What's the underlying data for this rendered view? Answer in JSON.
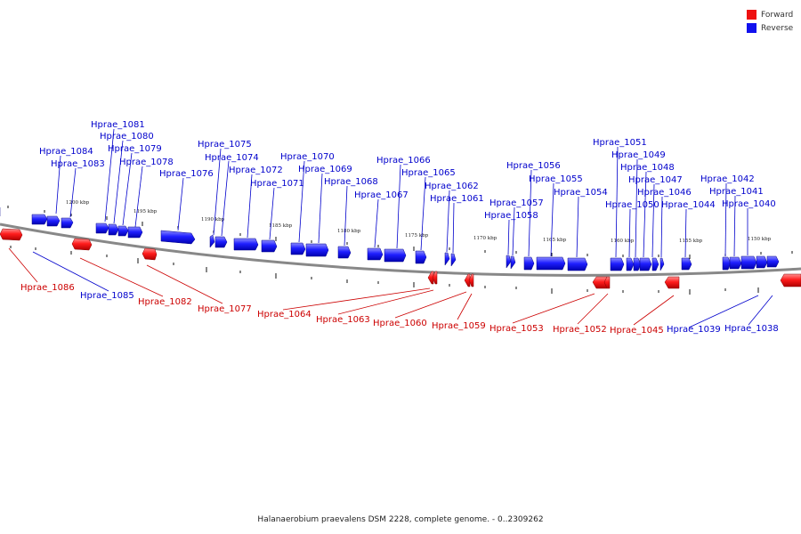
{
  "legend": {
    "forward_label": "Forward",
    "reverse_label": "Reverse",
    "forward_color": "#ee1111",
    "reverse_color": "#1111ee"
  },
  "footer_caption": "Halanaerobium praevalens DSM 2228, complete genome. - 0..2309262",
  "colors": {
    "axis": "#888888",
    "tick": "#111111",
    "forward_text": "#cc0000",
    "reverse_text": "#0000cc"
  },
  "scale_labels": [
    "1200 kbp",
    "1195 kbp",
    "1190 kbp",
    "1185 kbp",
    "1180 kbp",
    "1175 kbp",
    "1170 kbp",
    "1165 kbp",
    "1160 kbp",
    "1155 kbp",
    "1150 kbp"
  ],
  "genes_reverse": [
    "Hprae_1084",
    "Hprae_1083",
    "Hprae_1081",
    "Hprae_1080",
    "Hprae_1079",
    "Hprae_1078",
    "Hprae_1076",
    "Hprae_1075",
    "Hprae_1074",
    "Hprae_1072",
    "Hprae_1071",
    "Hprae_1070",
    "Hprae_1069",
    "Hprae_1068",
    "Hprae_1067",
    "Hprae_1066",
    "Hprae_1065",
    "Hprae_1062",
    "Hprae_1061",
    "Hprae_1057",
    "Hprae_1058",
    "Hprae_1056",
    "Hprae_1055",
    "Hprae_1054",
    "Hprae_1051",
    "Hprae_1049",
    "Hprae_1048",
    "Hprae_1047",
    "Hprae_1050",
    "Hprae_1046",
    "Hprae_1044",
    "Hprae_1042",
    "Hprae_1041",
    "Hprae_1040",
    "Hprae_1085",
    "Hprae_1039",
    "Hprae_1038"
  ],
  "genes_forward": [
    "Hprae_1086",
    "Hprae_1082",
    "Hprae_1077",
    "Hprae_1064",
    "Hprae_1063",
    "Hprae_1060",
    "Hprae_1059",
    "Hprae_1053",
    "Hprae_1052",
    "Hprae_1045"
  ]
}
